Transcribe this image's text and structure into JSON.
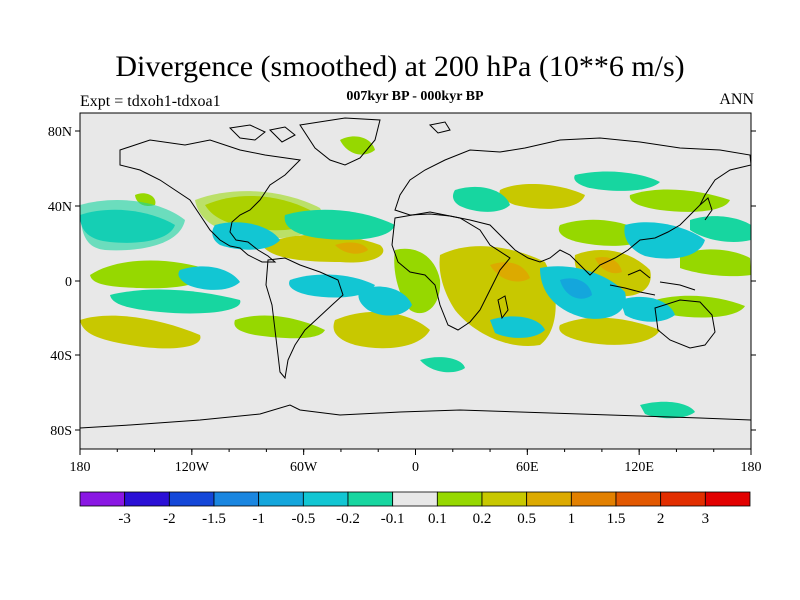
{
  "title": "Divergence (smoothed) at 200 hPa (10**6 m/s)",
  "subtitle": "007kyr BP - 000kyr BP",
  "experiment": "Expt = tdxoh1-tdxoa1",
  "season": "ANN",
  "map": {
    "lat_labels": [
      "80N",
      "40N",
      "0",
      "40S",
      "80S"
    ],
    "lon_labels": [
      "180",
      "120W",
      "60W",
      "0",
      "60E",
      "120E",
      "180"
    ],
    "background_color": "#e8e8e8",
    "coastline_color": "#000000"
  },
  "colorbar": {
    "colors": [
      "#8a17e3",
      "#2b10d6",
      "#1447d8",
      "#1a86e0",
      "#14a6dc",
      "#12c6d3",
      "#17d6a0",
      "#e8e8e8",
      "#96d800",
      "#c8c800",
      "#dcaa00",
      "#e28000",
      "#e25800",
      "#e22e00",
      "#e20000"
    ],
    "labels": [
      "-3",
      "-2",
      "-1.5",
      "-1",
      "-0.5",
      "-0.2",
      "-0.1",
      "0.1",
      "0.2",
      "0.5",
      "1",
      "1.5",
      "2",
      "3"
    ]
  }
}
